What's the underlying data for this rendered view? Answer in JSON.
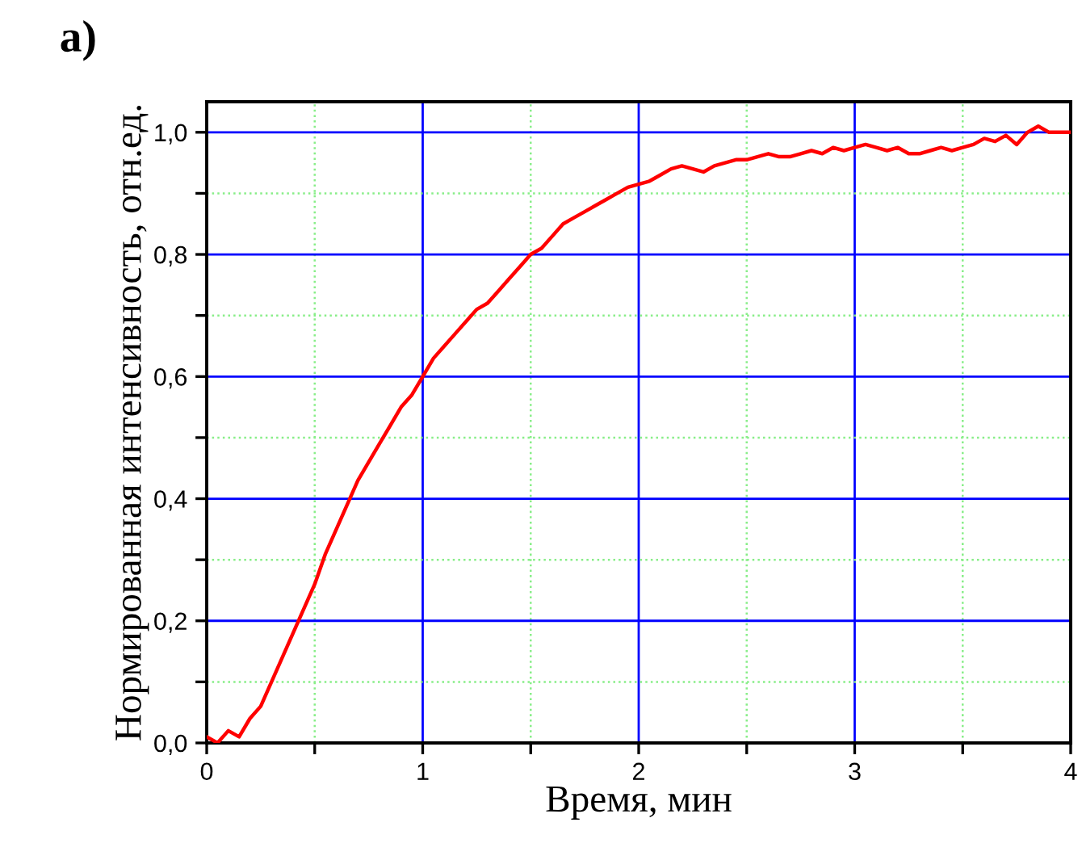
{
  "chart_data": {
    "type": "line",
    "title": "а)",
    "xlabel": "Время, мин",
    "ylabel": "Нормированная интенсивность, отн.ед.",
    "xlim": [
      0,
      4
    ],
    "ylim": [
      0,
      1.05
    ],
    "xticks": [
      0,
      {
        "value": 0.5,
        "label": null
      },
      1,
      {
        "value": 1.5,
        "label": null
      },
      2,
      {
        "value": 2.5,
        "label": null
      },
      3,
      {
        "value": 3.5,
        "label": null
      },
      4
    ],
    "yticks": [
      {
        "value": 0,
        "label": "0,0"
      },
      {
        "value": 0.1,
        "label": null
      },
      {
        "value": 0.2,
        "label": "0,2"
      },
      {
        "value": 0.3,
        "label": null
      },
      {
        "value": 0.4,
        "label": "0,4"
      },
      {
        "value": 0.5,
        "label": null
      },
      {
        "value": 0.6,
        "label": "0,6"
      },
      {
        "value": 0.7,
        "label": null
      },
      {
        "value": 0.8,
        "label": "0,8"
      },
      {
        "value": 0.9,
        "label": null
      },
      {
        "value": 1.0,
        "label": "1,0"
      }
    ],
    "grid": true,
    "marker": "none",
    "line_style": "solid",
    "series": [
      {
        "color": "#ff0000",
        "x": [
          0,
          0.05,
          0.1,
          0.15,
          0.2,
          0.25,
          0.3,
          0.35,
          0.4,
          0.45,
          0.5,
          0.55,
          0.6,
          0.65,
          0.7,
          0.75,
          0.8,
          0.85,
          0.9,
          0.95,
          1.0,
          1.05,
          1.1,
          1.15,
          1.2,
          1.25,
          1.3,
          1.35,
          1.4,
          1.45,
          1.5,
          1.55,
          1.6,
          1.65,
          1.7,
          1.75,
          1.8,
          1.85,
          1.9,
          1.95,
          2.0,
          2.05,
          2.1,
          2.15,
          2.2,
          2.25,
          2.3,
          2.35,
          2.4,
          2.45,
          2.5,
          2.55,
          2.6,
          2.65,
          2.7,
          2.75,
          2.8,
          2.85,
          2.9,
          2.95,
          3.0,
          3.05,
          3.1,
          3.15,
          3.2,
          3.25,
          3.3,
          3.35,
          3.4,
          3.45,
          3.5,
          3.55,
          3.6,
          3.65,
          3.7,
          3.75,
          3.8,
          3.85,
          3.9,
          3.95,
          4.0
        ],
        "values": [
          0.01,
          0.0,
          0.02,
          0.01,
          0.04,
          0.06,
          0.1,
          0.14,
          0.18,
          0.22,
          0.26,
          0.31,
          0.35,
          0.39,
          0.43,
          0.46,
          0.49,
          0.52,
          0.55,
          0.57,
          0.6,
          0.63,
          0.65,
          0.67,
          0.69,
          0.71,
          0.72,
          0.74,
          0.76,
          0.78,
          0.8,
          0.81,
          0.83,
          0.85,
          0.86,
          0.87,
          0.88,
          0.89,
          0.9,
          0.91,
          0.915,
          0.92,
          0.93,
          0.94,
          0.945,
          0.94,
          0.935,
          0.945,
          0.95,
          0.955,
          0.955,
          0.96,
          0.965,
          0.96,
          0.96,
          0.965,
          0.97,
          0.965,
          0.975,
          0.97,
          0.975,
          0.98,
          0.975,
          0.97,
          0.975,
          0.965,
          0.965,
          0.97,
          0.975,
          0.97,
          0.975,
          0.98,
          0.99,
          0.985,
          0.995,
          0.98,
          1.0,
          1.01,
          1.0,
          1.0,
          1.0
        ]
      }
    ]
  }
}
